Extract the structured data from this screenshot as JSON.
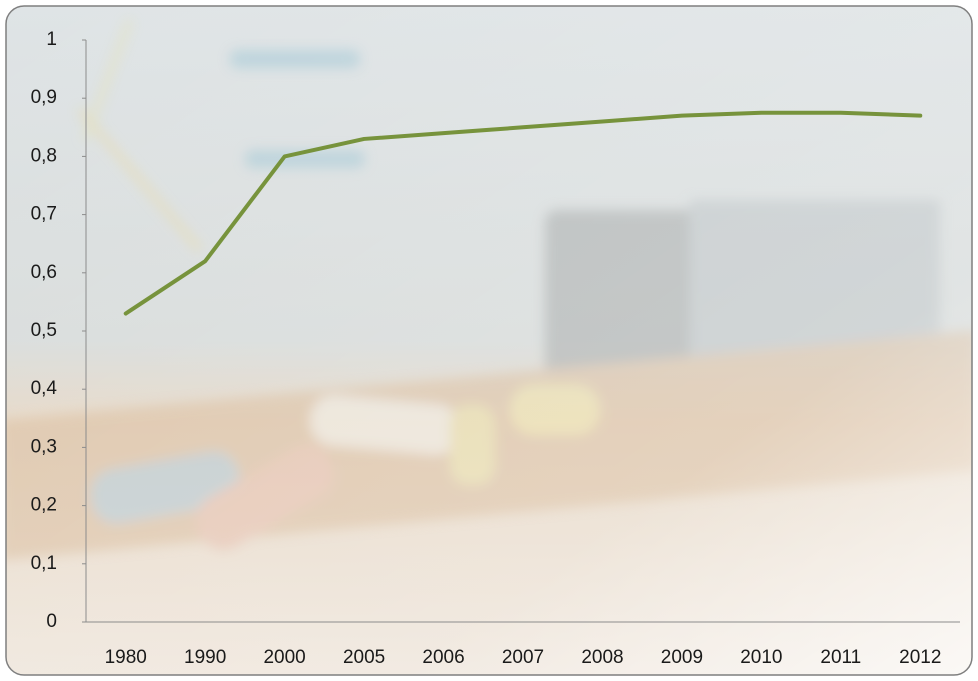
{
  "chart_data": {
    "type": "line",
    "categories": [
      "1980",
      "1990",
      "2000",
      "2005",
      "2006",
      "2007",
      "2008",
      "2009",
      "2010",
      "2011",
      "2012"
    ],
    "series": [
      {
        "color": "#77933c",
        "values": [
          0.53,
          0.62,
          0.8,
          0.83,
          0.84,
          0.85,
          0.86,
          0.87,
          0.875,
          0.875,
          0.87
        ]
      }
    ],
    "ylim": [
      0,
      1
    ],
    "yticks": [
      0,
      {
        "value": 0.1,
        "label": "0,1"
      },
      {
        "value": 0.2,
        "label": "0,2"
      },
      {
        "value": 0.3,
        "label": "0,3"
      },
      {
        "value": 0.4,
        "label": "0,4"
      },
      {
        "value": 0.5,
        "label": "0,5"
      },
      {
        "value": 0.6,
        "label": "0,6"
      },
      {
        "value": 0.7,
        "label": "0,7"
      },
      {
        "value": 0.8,
        "label": "0,8"
      },
      {
        "value": 0.9,
        "label": "0,9"
      },
      1
    ],
    "grid": false
  }
}
